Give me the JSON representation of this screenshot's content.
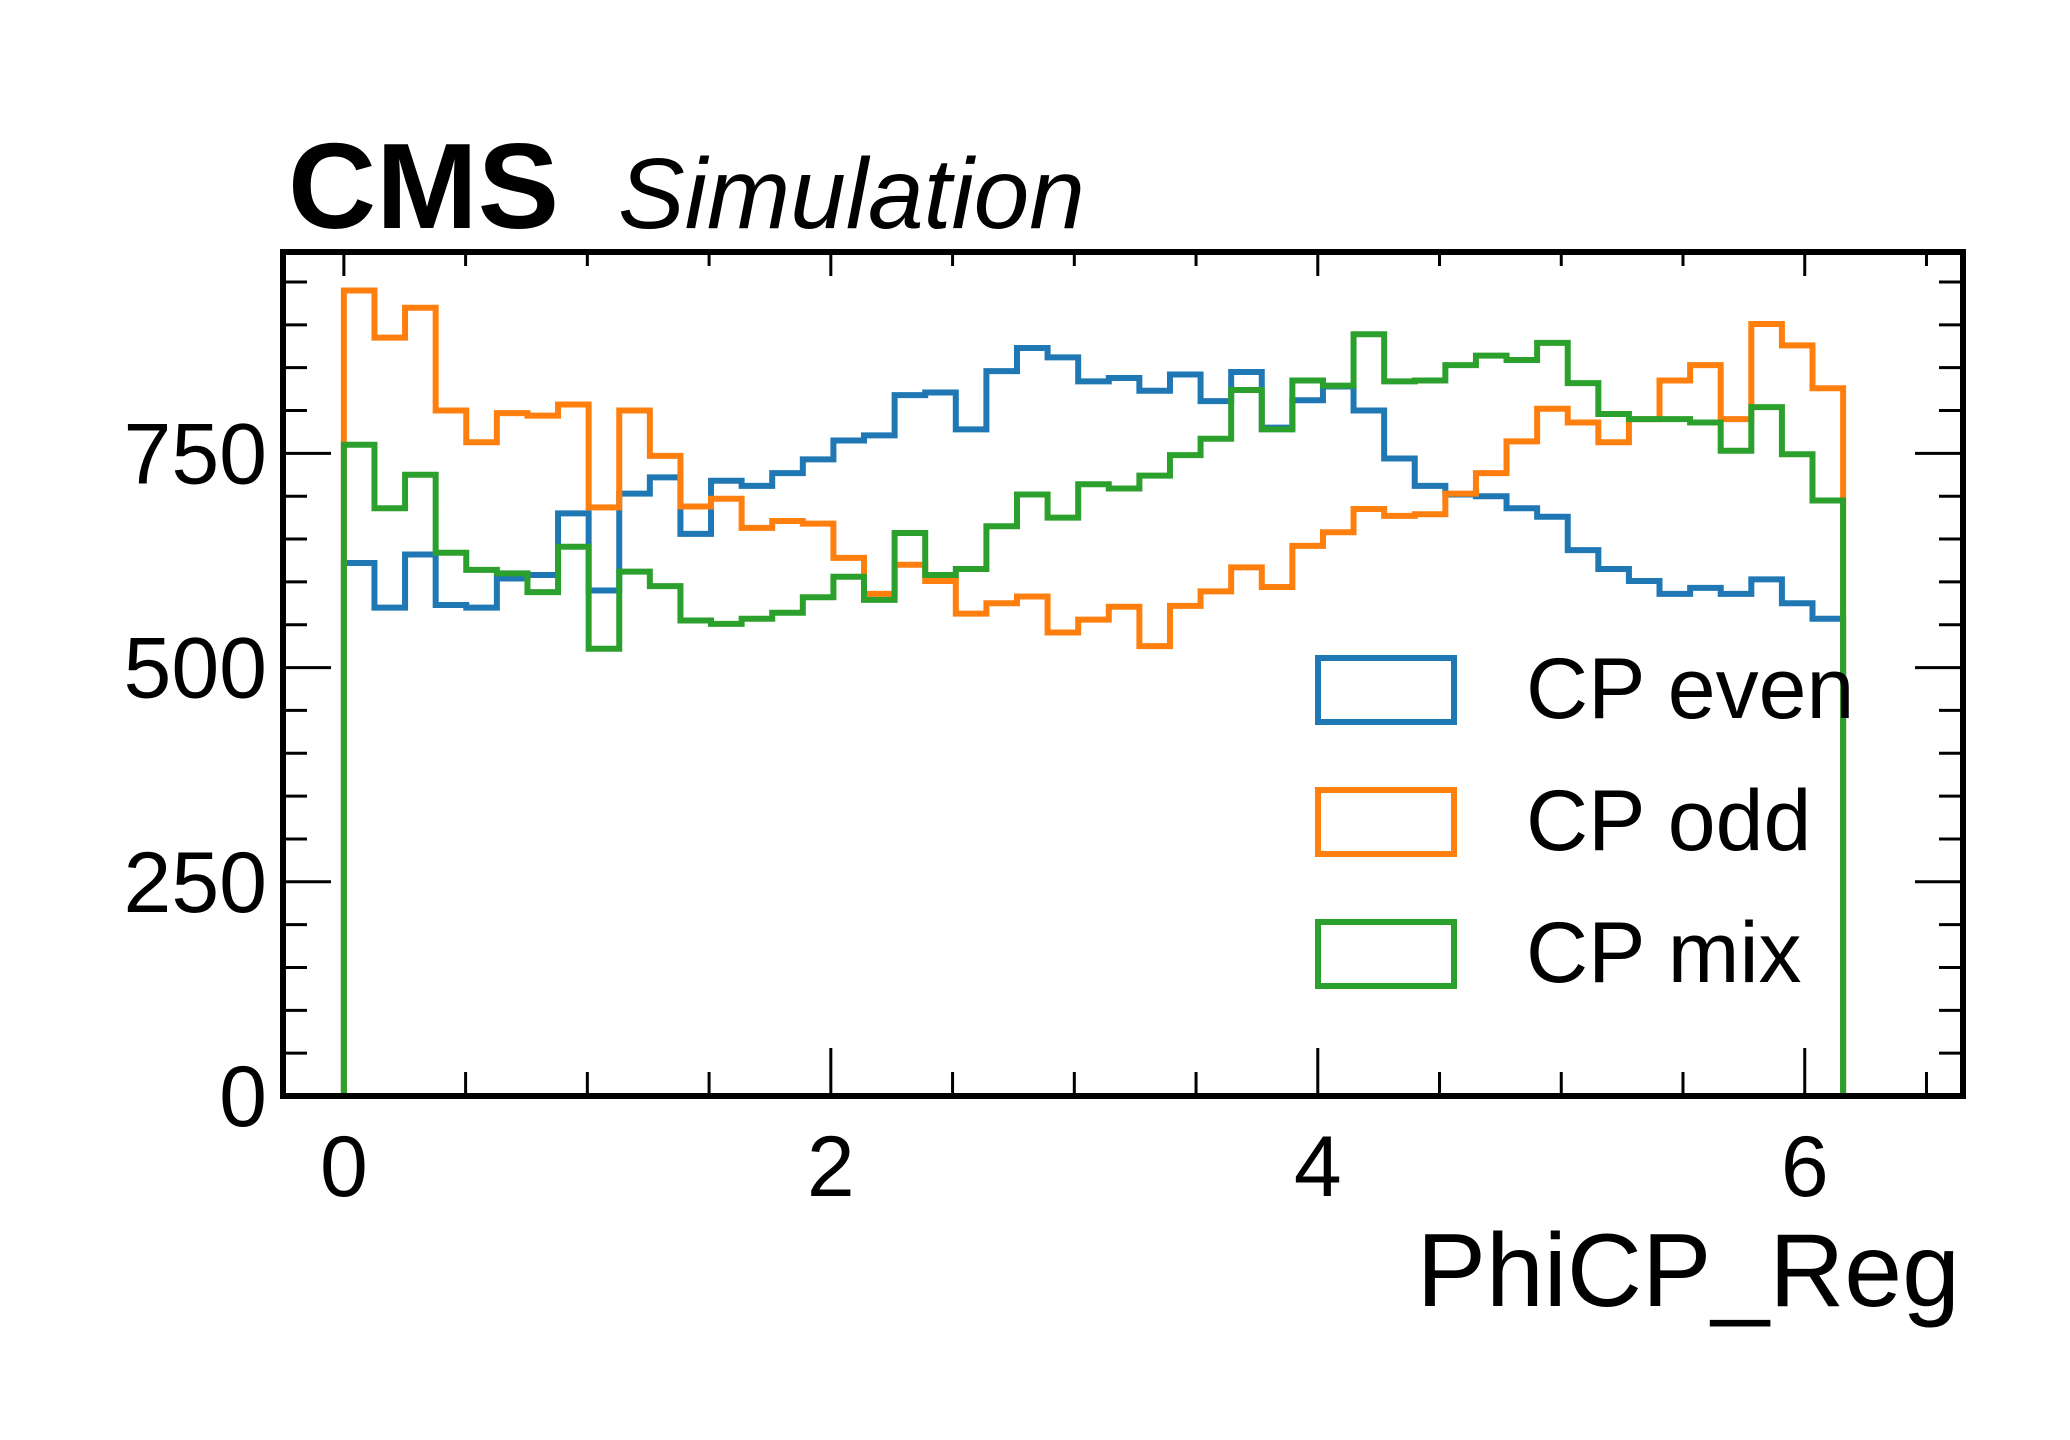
{
  "header": {
    "experiment": "CMS",
    "status": "Simulation"
  },
  "chart_data": {
    "type": "histogram-step",
    "xlabel": "PhiCP_Reg",
    "ylabel": "",
    "xlim": [
      -0.25,
      6.65
    ],
    "ylim": [
      0,
      985
    ],
    "x_ticks": [
      0,
      2,
      4,
      6
    ],
    "y_ticks": [
      0,
      250,
      500,
      750
    ],
    "bin_edges_range": [
      0,
      6.2832
    ],
    "n_bins": 50,
    "legend_position": "lower-right",
    "series": [
      {
        "name": "CP even",
        "color": "#1f77b4",
        "values": [
          622,
          570,
          632,
          573,
          570,
          604,
          608,
          680,
          590,
          703,
          722,
          656,
          718,
          712,
          727,
          743,
          765,
          771,
          818,
          821,
          778,
          846,
          873,
          862,
          834,
          838,
          823,
          842,
          811,
          845,
          780,
          812,
          828,
          800,
          744,
          712,
          702,
          700,
          686,
          676,
          637,
          615,
          601,
          586,
          593,
          586,
          603,
          575,
          557,
          0
        ]
      },
      {
        "name": "CP odd",
        "color": "#ff7f0e",
        "values": [
          940,
          885,
          920,
          800,
          763,
          797,
          794,
          807,
          687,
          800,
          747,
          688,
          697,
          663,
          671,
          668,
          628,
          586,
          620,
          601,
          563,
          575,
          583,
          541,
          556,
          571,
          525,
          572,
          589,
          617,
          594,
          642,
          658,
          685,
          677,
          679,
          703,
          727,
          764,
          802,
          786,
          763,
          790,
          835,
          853,
          790,
          901,
          876,
          826,
          0
        ]
      },
      {
        "name": "CP mix",
        "color": "#2ca02c",
        "values": [
          760,
          686,
          725,
          634,
          614,
          610,
          588,
          641,
          522,
          612,
          595,
          555,
          551,
          557,
          564,
          582,
          606,
          579,
          657,
          608,
          615,
          665,
          702,
          675,
          714,
          709,
          724,
          748,
          767,
          824,
          778,
          835,
          829,
          889,
          834,
          835,
          853,
          864,
          859,
          879,
          832,
          796,
          790,
          790,
          786,
          753,
          804,
          749,
          695,
          0
        ]
      }
    ]
  }
}
